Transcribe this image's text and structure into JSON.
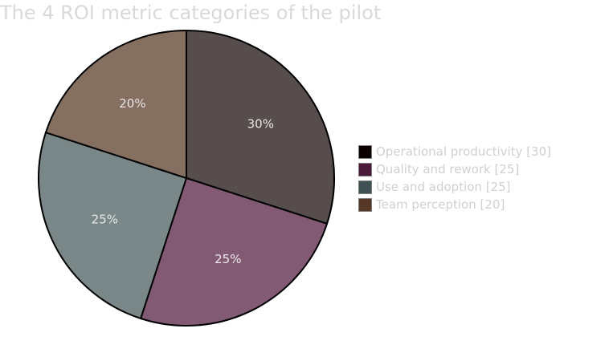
{
  "chart_data": {
    "type": "pie",
    "title": "The 4 ROI metric categories of the pilot",
    "slices": [
      {
        "name": "Operational productivity",
        "value": 30,
        "percent_label": "30%",
        "legend_label": "Operational productivity [30]",
        "color": "#574d4d",
        "legend_color": "#0d0000"
      },
      {
        "name": "Quality and rework",
        "value": 25,
        "percent_label": "25%",
        "legend_label": "Quality and rework [25]",
        "color": "#835a74",
        "legend_color": "#4b1a3a"
      },
      {
        "name": "Use and adoption",
        "value": 25,
        "percent_label": "25%",
        "legend_label": "Use and adoption [25]",
        "color": "#798788",
        "legend_color": "#3f5153"
      },
      {
        "name": "Team perception",
        "value": 20,
        "percent_label": "20%",
        "legend_label": "Team perception [20]",
        "color": "#856f60",
        "legend_color": "#573826"
      }
    ],
    "legend_position": "right"
  }
}
